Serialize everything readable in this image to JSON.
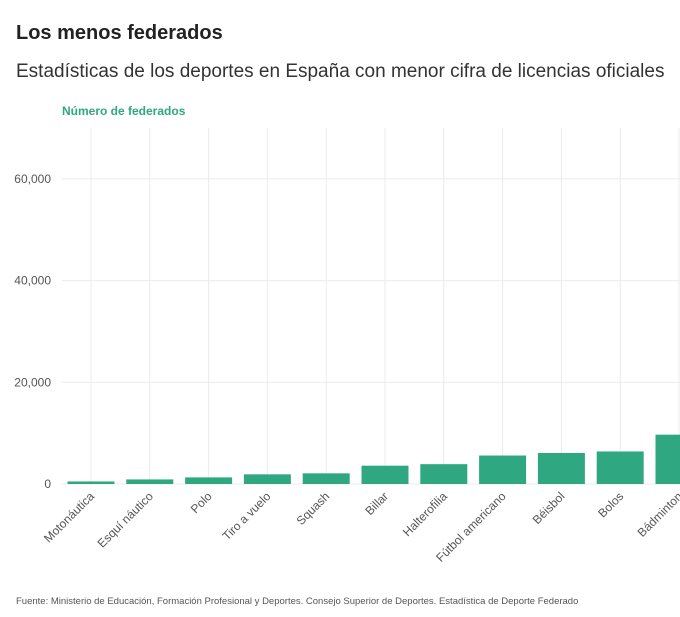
{
  "header": {
    "title": "Los menos federados",
    "subtitle": "Estadísticas de los deportes en España con menor cifra de licencias oficiales"
  },
  "footer": {
    "source": "Fuente: Ministerio de Educación, Formación Profesional y Deportes. Consejo Superior de Deportes. Estadística de Deporte Federado"
  },
  "colors": {
    "bar": "#2fa882",
    "grid": "#ebebeb",
    "axis_title": "#2fa882"
  },
  "chart_data": {
    "type": "bar",
    "title": "Los menos federados",
    "subtitle": "Estadísticas de los deportes en España con menor cifra de licencias oficiales",
    "ylabel": "Número de federados",
    "xlabel": "",
    "ylim": [
      0,
      70000
    ],
    "yticks": [
      0,
      20000,
      40000,
      60000
    ],
    "ytick_labels": [
      "0",
      "20,000",
      "40,000",
      "60,000"
    ],
    "grid": true,
    "categories": [
      "Motonáutica",
      "Esquí náutico",
      "Polo",
      "Tiro a vuelo",
      "Squash",
      "Billar",
      "Halterofilia",
      "Fútbol americano",
      "Béisbol",
      "Bolos",
      "Bádminton"
    ],
    "values": [
      500,
      900,
      1300,
      1900,
      2100,
      3600,
      3900,
      5600,
      6100,
      6400,
      9700
    ]
  }
}
